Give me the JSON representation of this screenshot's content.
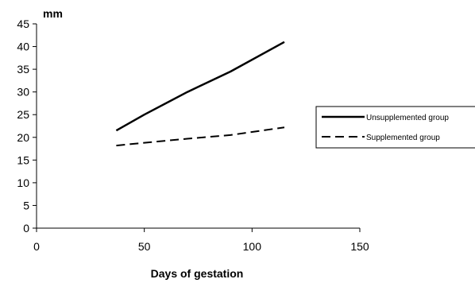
{
  "chart_data": {
    "type": "line",
    "title": "",
    "ylabel": "mm",
    "xlabel": "Days of gestation",
    "xlim": [
      0,
      150
    ],
    "ylim": [
      0,
      45
    ],
    "xticks": [
      0,
      50,
      100,
      150
    ],
    "yticks": [
      0,
      5,
      10,
      15,
      20,
      25,
      30,
      35,
      40,
      45
    ],
    "grid": false,
    "legend_position": "right",
    "series": [
      {
        "name": "Unsupplemented group",
        "style": "solid",
        "color": "#000000",
        "x": [
          37,
          50,
          70,
          90,
          115
        ],
        "y": [
          21.5,
          25.0,
          30.0,
          34.5,
          41.0
        ]
      },
      {
        "name": "Supplemented group",
        "style": "dashed",
        "color": "#000000",
        "x": [
          37,
          50,
          70,
          90,
          115
        ],
        "y": [
          18.2,
          18.8,
          19.7,
          20.5,
          22.2
        ]
      }
    ]
  }
}
